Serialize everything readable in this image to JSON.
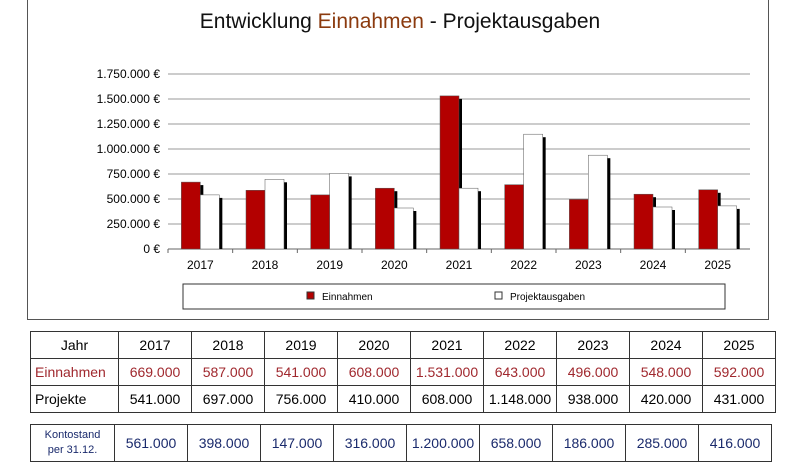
{
  "chart_data": {
    "type": "bar",
    "title_parts": [
      "Entwicklung ",
      "Einnahmen",
      " - Projektausgaben"
    ],
    "categories": [
      "2017",
      "2018",
      "2019",
      "2020",
      "2021",
      "2022",
      "2023",
      "2024",
      "2025"
    ],
    "series": [
      {
        "name": "Einnahmen",
        "color": "#b30000",
        "values": [
          669000,
          587000,
          541000,
          608000,
          1531000,
          643000,
          496000,
          548000,
          592000
        ]
      },
      {
        "name": "Projektausgaben",
        "color": "#ffffff",
        "values": [
          541000,
          697000,
          756000,
          410000,
          608000,
          1148000,
          938000,
          420000,
          431000
        ]
      }
    ],
    "yticks": [
      "0 €",
      "250.000 €",
      "500.000 €",
      "750.000 €",
      "1.000.000 €",
      "1.250.000 €",
      "1.500.000 €",
      "1.750.000 €"
    ],
    "ylim": [
      0,
      1750000
    ],
    "grid": true,
    "legend": "bottom"
  },
  "table": {
    "header": [
      "Jahr",
      "2017",
      "2018",
      "2019",
      "2020",
      "2021",
      "2022",
      "2023",
      "2024",
      "2025"
    ],
    "einnahmen": [
      "Einnahmen",
      "669.000",
      "587.000",
      "541.000",
      "608.000",
      "1.531.000",
      "643.000",
      "496.000",
      "548.000",
      "592.000"
    ],
    "projekte": [
      "Projekte",
      "541.000",
      "697.000",
      "756.000",
      "410.000",
      "608.000",
      "1.148.000",
      "938.000",
      "420.000",
      "431.000"
    ],
    "kontostand_label": [
      "Kontostand",
      "per 31.12."
    ],
    "kontostand": [
      "561.000",
      "398.000",
      "147.000",
      "316.000",
      "1.200.000",
      "658.000",
      "186.000",
      "285.000",
      "416.000"
    ]
  }
}
